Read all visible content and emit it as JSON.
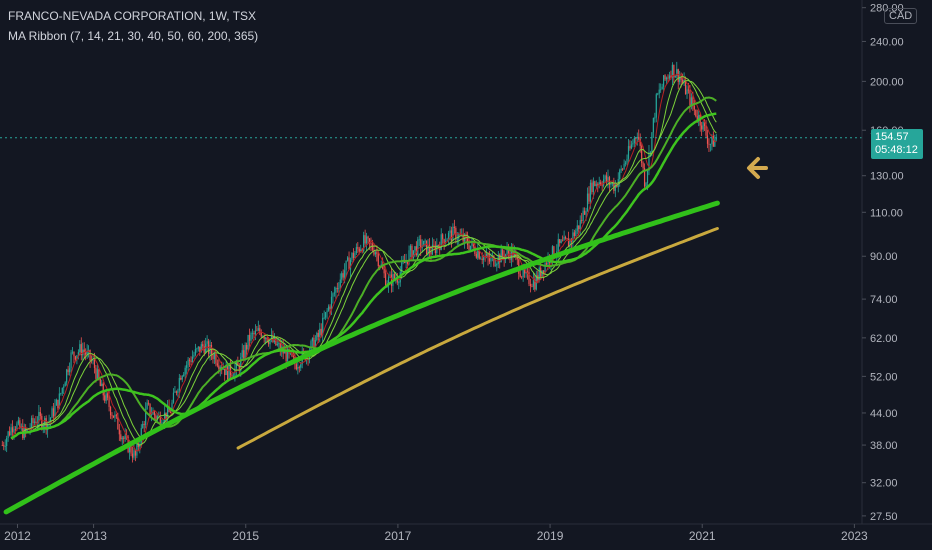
{
  "header": {
    "title": "FRANCO-NEVADA CORPORATION, 1W, TSX",
    "indicator": "MA Ribbon (7, 14, 21, 30, 40, 50, 60, 200, 365)"
  },
  "currency": "CAD",
  "last_price": {
    "value": "154.57",
    "countdown": "05:48:12"
  },
  "colors": {
    "background": "#131722",
    "up": "#26a69a",
    "down": "#ef5350",
    "ma_fast": "#7cd33a",
    "ma_mid": "#4caf26",
    "ma_slow": "#3ec41f",
    "ma_200": "#31c11a",
    "ma_365": "#c9a93e",
    "ma_red": "#b72222",
    "arrow": "#d4aa4f"
  },
  "arrow_icon": "arrow-left-icon",
  "chart_data": {
    "type": "candlestick",
    "scale": "log",
    "title": "FRANCO-NEVADA CORPORATION, 1W, TSX",
    "x_ticks": [
      "2012",
      "2013",
      "2015",
      "2017",
      "2019",
      "2021",
      "2023"
    ],
    "y_ticks": [
      "27.50",
      "32.00",
      "38.00",
      "44.00",
      "52.00",
      "62.00",
      "74.00",
      "90.00",
      "110.00",
      "130.00",
      "160.00",
      "200.00",
      "240.00",
      "280.00"
    ],
    "ylim": [
      26.5,
      290
    ],
    "xlim": [
      2011.77,
      2023.1
    ],
    "price_path": [
      [
        2011.8,
        38
      ],
      [
        2011.95,
        42
      ],
      [
        2012.1,
        40
      ],
      [
        2012.25,
        43
      ],
      [
        2012.4,
        42
      ],
      [
        2012.55,
        47
      ],
      [
        2012.7,
        57
      ],
      [
        2012.85,
        59
      ],
      [
        2013.0,
        55
      ],
      [
        2013.1,
        49
      ],
      [
        2013.25,
        44
      ],
      [
        2013.4,
        39
      ],
      [
        2013.55,
        36
      ],
      [
        2013.7,
        45
      ],
      [
        2013.85,
        43
      ],
      [
        2014.0,
        44
      ],
      [
        2014.15,
        53
      ],
      [
        2014.3,
        57
      ],
      [
        2014.45,
        60
      ],
      [
        2014.6,
        57
      ],
      [
        2014.75,
        53
      ],
      [
        2014.9,
        54
      ],
      [
        2015.05,
        62
      ],
      [
        2015.2,
        64
      ],
      [
        2015.35,
        61
      ],
      [
        2015.5,
        58
      ],
      [
        2015.65,
        55
      ],
      [
        2015.8,
        58
      ],
      [
        2015.95,
        62
      ],
      [
        2016.1,
        72
      ],
      [
        2016.25,
        82
      ],
      [
        2016.4,
        90
      ],
      [
        2016.55,
        96
      ],
      [
        2016.7,
        93
      ],
      [
        2016.85,
        80
      ],
      [
        2017.0,
        82
      ],
      [
        2017.15,
        91
      ],
      [
        2017.3,
        95
      ],
      [
        2017.45,
        92
      ],
      [
        2017.6,
        98
      ],
      [
        2017.75,
        100
      ],
      [
        2017.9,
        96
      ],
      [
        2018.05,
        92
      ],
      [
        2018.2,
        88
      ],
      [
        2018.35,
        90
      ],
      [
        2018.5,
        92
      ],
      [
        2018.65,
        82
      ],
      [
        2018.8,
        80
      ],
      [
        2018.95,
        88
      ],
      [
        2019.1,
        94
      ],
      [
        2019.25,
        96
      ],
      [
        2019.4,
        105
      ],
      [
        2019.55,
        125
      ],
      [
        2019.7,
        128
      ],
      [
        2019.85,
        124
      ],
      [
        2020.0,
        140
      ],
      [
        2020.15,
        160
      ],
      [
        2020.25,
        125
      ],
      [
        2020.4,
        185
      ],
      [
        2020.5,
        200
      ],
      [
        2020.6,
        212
      ],
      [
        2020.7,
        205
      ],
      [
        2020.8,
        190
      ],
      [
        2020.9,
        175
      ],
      [
        2021.0,
        165
      ],
      [
        2021.1,
        150
      ],
      [
        2021.2,
        154.57
      ]
    ],
    "annotations": [
      "154.57",
      "05:48:12"
    ]
  }
}
